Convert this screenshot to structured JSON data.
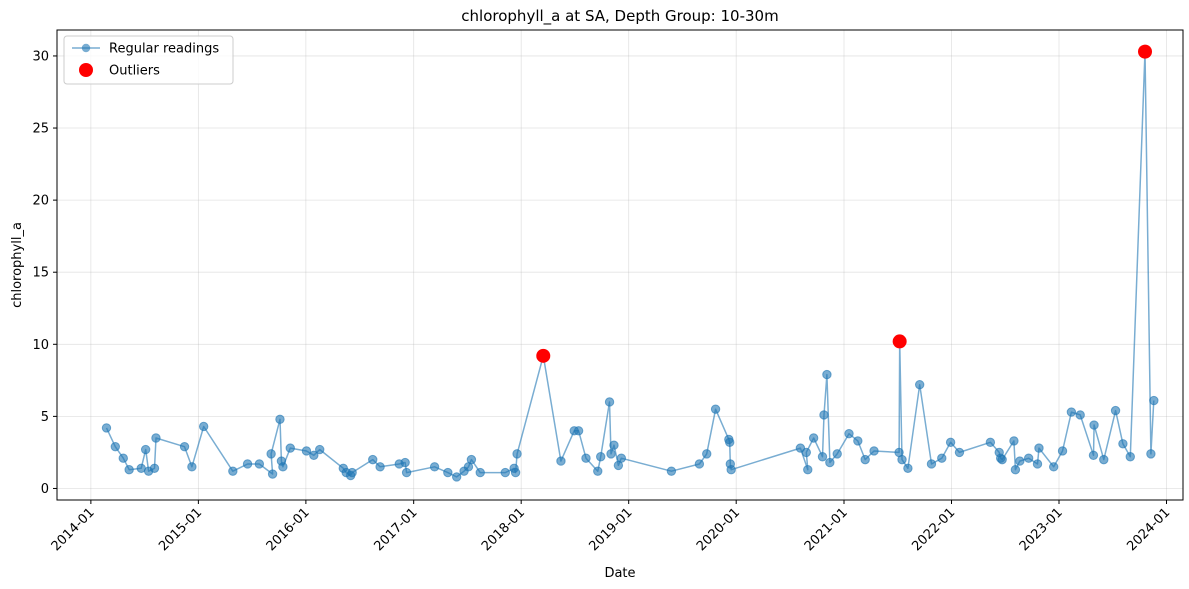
{
  "chart_data": {
    "type": "line",
    "title": "chlorophyll_a at SA, Depth Group: 10-30m",
    "xlabel": "Date",
    "ylabel": "chlorophyll_a",
    "xlim": [
      "2013-09-08",
      "2024-02-26"
    ],
    "ylim": [
      -0.8,
      31.8
    ],
    "x_ticks": [
      "2014-01",
      "2015-01",
      "2016-01",
      "2017-01",
      "2018-01",
      "2019-01",
      "2020-01",
      "2021-01",
      "2022-01",
      "2023-01",
      "2024-01"
    ],
    "y_ticks": [
      0,
      5,
      10,
      15,
      20,
      25,
      30
    ],
    "grid": true,
    "legend": "top-left",
    "colors": {
      "regular": "#1f77b4",
      "outlier": "#ff0000"
    },
    "series": [
      {
        "name": "Regular readings",
        "points": [
          [
            "2014-02-23",
            4.2
          ],
          [
            "2014-03-25",
            2.9
          ],
          [
            "2014-04-21",
            2.1
          ],
          [
            "2014-05-11",
            1.3
          ],
          [
            "2014-06-21",
            1.4
          ],
          [
            "2014-07-06",
            2.7
          ],
          [
            "2014-07-16",
            1.2
          ],
          [
            "2014-08-05",
            1.4
          ],
          [
            "2014-08-10",
            3.5
          ],
          [
            "2014-11-15",
            2.9
          ],
          [
            "2014-12-10",
            1.5
          ],
          [
            "2015-01-19",
            4.3
          ],
          [
            "2015-04-28",
            1.2
          ],
          [
            "2015-06-17",
            1.7
          ],
          [
            "2015-07-27",
            1.7
          ],
          [
            "2015-09-10",
            1.0
          ],
          [
            "2015-09-05",
            2.4
          ],
          [
            "2015-10-05",
            4.8
          ],
          [
            "2015-10-10",
            1.9
          ],
          [
            "2015-10-15",
            1.5
          ],
          [
            "2015-11-09",
            2.8
          ],
          [
            "2016-01-03",
            2.6
          ],
          [
            "2016-01-28",
            2.3
          ],
          [
            "2016-02-17",
            2.7
          ],
          [
            "2016-05-07",
            1.4
          ],
          [
            "2016-05-17",
            1.1
          ],
          [
            "2016-06-01",
            0.9
          ],
          [
            "2016-06-06",
            1.1
          ],
          [
            "2016-08-15",
            2.0
          ],
          [
            "2016-09-09",
            1.5
          ],
          [
            "2016-11-13",
            1.7
          ],
          [
            "2016-12-03",
            1.8
          ],
          [
            "2016-12-08",
            1.1
          ],
          [
            "2017-03-13",
            1.5
          ],
          [
            "2017-04-27",
            1.1
          ],
          [
            "2017-05-27",
            0.8
          ],
          [
            "2017-06-21",
            1.2
          ],
          [
            "2017-07-06",
            1.5
          ],
          [
            "2017-07-16",
            2.0
          ],
          [
            "2017-08-15",
            1.1
          ],
          [
            "2017-11-08",
            1.1
          ],
          [
            "2017-12-08",
            1.4
          ],
          [
            "2017-12-13",
            1.1
          ],
          [
            "2017-12-18",
            2.4
          ],
          [
            "2018-03-17",
            9.2
          ],
          [
            "2018-05-16",
            1.9
          ],
          [
            "2018-06-30",
            4.0
          ],
          [
            "2018-07-15",
            4.0
          ],
          [
            "2018-08-09",
            2.1
          ],
          [
            "2018-09-18",
            1.2
          ],
          [
            "2018-09-28",
            2.2
          ],
          [
            "2018-10-28",
            6.0
          ],
          [
            "2018-11-02",
            2.4
          ],
          [
            "2018-11-12",
            3.0
          ],
          [
            "2018-11-27",
            1.6
          ],
          [
            "2018-12-07",
            2.1
          ],
          [
            "2019-05-26",
            1.2
          ],
          [
            "2019-08-29",
            1.7
          ],
          [
            "2019-09-23",
            2.4
          ],
          [
            "2019-10-23",
            5.5
          ],
          [
            "2019-12-07",
            3.4
          ],
          [
            "2019-12-10",
            3.2
          ],
          [
            "2019-12-12",
            1.7
          ],
          [
            "2019-12-15",
            1.3
          ],
          [
            "2020-08-06",
            2.8
          ],
          [
            "2020-08-31",
            1.3
          ],
          [
            "2020-08-26",
            2.5
          ],
          [
            "2020-09-20",
            3.5
          ],
          [
            "2020-10-20",
            2.2
          ],
          [
            "2020-10-25",
            5.1
          ],
          [
            "2020-11-04",
            7.9
          ],
          [
            "2020-11-14",
            1.8
          ],
          [
            "2020-12-09",
            2.4
          ],
          [
            "2021-01-18",
            3.8
          ],
          [
            "2021-02-17",
            3.3
          ],
          [
            "2021-03-14",
            2.0
          ],
          [
            "2021-04-13",
            2.6
          ],
          [
            "2021-07-07",
            2.5
          ],
          [
            "2021-07-09",
            10.2
          ],
          [
            "2021-07-17",
            2.0
          ],
          [
            "2021-08-06",
            1.4
          ],
          [
            "2021-09-15",
            7.2
          ],
          [
            "2021-10-25",
            1.7
          ],
          [
            "2021-11-29",
            2.1
          ],
          [
            "2021-12-29",
            3.2
          ],
          [
            "2022-01-28",
            2.5
          ],
          [
            "2022-05-13",
            3.2
          ],
          [
            "2022-06-12",
            2.5
          ],
          [
            "2022-06-17",
            2.1
          ],
          [
            "2022-06-22",
            2.0
          ],
          [
            "2022-08-01",
            3.3
          ],
          [
            "2022-08-06",
            1.3
          ],
          [
            "2022-08-21",
            1.9
          ],
          [
            "2022-09-20",
            2.1
          ],
          [
            "2022-10-20",
            1.7
          ],
          [
            "2022-10-25",
            2.8
          ],
          [
            "2022-12-14",
            1.5
          ],
          [
            "2023-01-13",
            2.6
          ],
          [
            "2023-02-12",
            5.3
          ],
          [
            "2023-03-14",
            5.1
          ],
          [
            "2023-04-28",
            2.3
          ],
          [
            "2023-04-30",
            4.4
          ],
          [
            "2023-06-02",
            2.0
          ],
          [
            "2023-07-12",
            5.4
          ],
          [
            "2023-08-06",
            3.1
          ],
          [
            "2023-08-31",
            2.2
          ],
          [
            "2023-10-20",
            30.3
          ],
          [
            "2023-11-09",
            2.4
          ],
          [
            "2023-11-19",
            6.1
          ]
        ]
      },
      {
        "name": "Outliers",
        "points": [
          [
            "2018-03-17",
            9.2
          ],
          [
            "2021-07-09",
            10.2
          ],
          [
            "2023-10-20",
            30.3
          ]
        ]
      }
    ]
  }
}
